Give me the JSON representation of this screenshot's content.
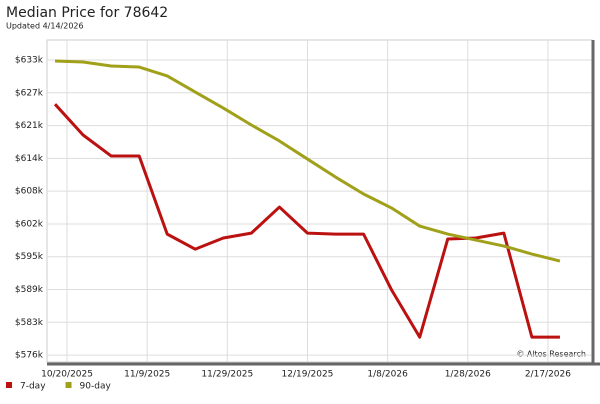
{
  "chart_data": {
    "type": "line",
    "title": "Median Price for 78642",
    "subtitle": "Updated 4/14/2026",
    "annotation": "© Altos Research",
    "x": [
      "2025-10-17",
      "2025-10-24",
      "2025-10-31",
      "2025-11-07",
      "2025-11-14",
      "2025-11-21",
      "2025-11-28",
      "2025-12-05",
      "2025-12-12",
      "2025-12-19",
      "2025-12-26",
      "2026-01-02",
      "2026-01-09",
      "2026-01-16",
      "2026-01-23",
      "2026-01-30",
      "2026-02-06",
      "2026-02-13",
      "2026-02-20"
    ],
    "series": [
      {
        "name": "7-day",
        "color": "#bb1111",
        "values": [
          624800,
          618850,
          614800,
          614800,
          599700,
          596800,
          598950,
          599900,
          604930,
          599900,
          599700,
          599700,
          588900,
          579800,
          598750,
          598950,
          599900,
          579800,
          579800
        ]
      },
      {
        "name": "90-day",
        "color": "#a0a01a",
        "values": [
          633150,
          632950,
          632180,
          631980,
          630250,
          627150,
          624050,
          620780,
          617700,
          614200,
          610730,
          607450,
          604740,
          601260,
          599710,
          598550,
          597400,
          595850,
          594500
        ]
      }
    ],
    "xlim": [
      "2025-10-15",
      "2026-02-28"
    ],
    "xticks": [
      {
        "value": "2025-10-20",
        "label": "10/20/2025"
      },
      {
        "value": "2025-11-09",
        "label": "11/9/2025"
      },
      {
        "value": "2025-11-29",
        "label": "11/29/2025"
      },
      {
        "value": "2025-12-19",
        "label": "12/19/2025"
      },
      {
        "value": "2026-01-08",
        "label": "1/8/2026"
      },
      {
        "value": "2026-01-28",
        "label": "1/28/2026"
      },
      {
        "value": "2026-02-17",
        "label": "2/17/2026"
      }
    ],
    "ylim": [
      575000,
      637200
    ],
    "yticks": [
      {
        "value": 576333,
        "label": "$576k"
      },
      {
        "value": 582667,
        "label": "$583k"
      },
      {
        "value": 589000,
        "label": "$589k"
      },
      {
        "value": 595333,
        "label": "$595k"
      },
      {
        "value": 601667,
        "label": "$602k"
      },
      {
        "value": 608000,
        "label": "$608k"
      },
      {
        "value": 614333,
        "label": "$614k"
      },
      {
        "value": 620667,
        "label": "$621k"
      },
      {
        "value": 627000,
        "label": "$627k"
      },
      {
        "value": 633333,
        "label": "$633k"
      }
    ],
    "grid": true
  }
}
